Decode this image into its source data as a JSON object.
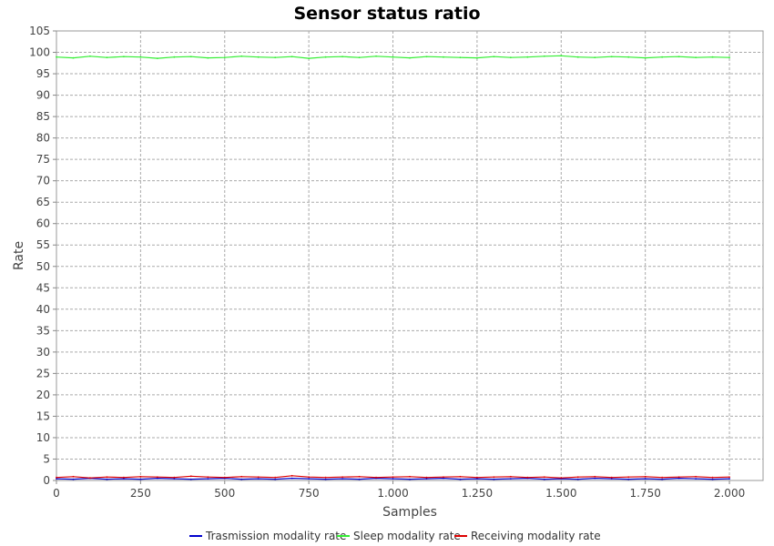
{
  "chart_data": {
    "type": "line",
    "title": "Sensor status ratio",
    "xlabel": "Samples",
    "ylabel": "Rate",
    "xlim": [
      0,
      2100
    ],
    "ylim": [
      0,
      105
    ],
    "x_ticks": [
      0,
      250,
      500,
      750,
      1000,
      1250,
      1500,
      1750,
      2000
    ],
    "x_tick_labels": [
      "0",
      "250",
      "500",
      "750",
      "1.000",
      "1.250",
      "1.500",
      "1.750",
      "2.000"
    ],
    "y_ticks": [
      0,
      5,
      10,
      15,
      20,
      25,
      30,
      35,
      40,
      45,
      50,
      55,
      60,
      65,
      70,
      75,
      80,
      85,
      90,
      95,
      100,
      105
    ],
    "grid": true,
    "legend_position": "bottom-center",
    "series": [
      {
        "name": "Trasmission modality rate",
        "color": "#0000cc",
        "x": [
          0,
          50,
          100,
          150,
          200,
          250,
          300,
          350,
          400,
          450,
          500,
          550,
          600,
          650,
          700,
          750,
          800,
          850,
          900,
          950,
          1000,
          1050,
          1100,
          1150,
          1200,
          1250,
          1300,
          1350,
          1400,
          1450,
          1500,
          1550,
          1600,
          1650,
          1700,
          1750,
          1800,
          1850,
          1900,
          1950,
          2000
        ],
        "values": [
          0.4,
          0.3,
          0.5,
          0.3,
          0.4,
          0.3,
          0.5,
          0.4,
          0.3,
          0.4,
          0.5,
          0.3,
          0.4,
          0.3,
          0.5,
          0.4,
          0.3,
          0.4,
          0.3,
          0.5,
          0.4,
          0.3,
          0.4,
          0.5,
          0.3,
          0.4,
          0.3,
          0.4,
          0.5,
          0.3,
          0.4,
          0.3,
          0.5,
          0.4,
          0.3,
          0.4,
          0.3,
          0.5,
          0.4,
          0.3,
          0.4
        ]
      },
      {
        "name": "Sleep modality rate",
        "color": "#33ee33",
        "x": [
          0,
          50,
          100,
          150,
          200,
          250,
          300,
          350,
          400,
          450,
          500,
          550,
          600,
          650,
          700,
          750,
          800,
          850,
          900,
          950,
          1000,
          1050,
          1100,
          1150,
          1200,
          1250,
          1300,
          1350,
          1400,
          1450,
          1500,
          1550,
          1600,
          1650,
          1700,
          1750,
          1800,
          1850,
          1900,
          1950,
          2000
        ],
        "values": [
          98.9,
          98.7,
          99.1,
          98.8,
          99.0,
          98.9,
          98.6,
          98.9,
          99.0,
          98.7,
          98.8,
          99.1,
          98.9,
          98.8,
          99.0,
          98.6,
          98.9,
          99.0,
          98.8,
          99.1,
          98.9,
          98.7,
          99.0,
          98.9,
          98.8,
          98.7,
          99.0,
          98.8,
          98.9,
          99.1,
          99.2,
          98.9,
          98.8,
          99.0,
          98.9,
          98.7,
          98.9,
          99.0,
          98.8,
          98.9,
          98.8
        ]
      },
      {
        "name": "Receiving modality rate",
        "color": "#dd0000",
        "x": [
          0,
          50,
          100,
          150,
          200,
          250,
          300,
          350,
          400,
          450,
          500,
          550,
          600,
          650,
          700,
          750,
          800,
          850,
          900,
          950,
          1000,
          1050,
          1100,
          1150,
          1200,
          1250,
          1300,
          1350,
          1400,
          1450,
          1500,
          1550,
          1600,
          1650,
          1700,
          1750,
          1800,
          1850,
          1900,
          1950,
          2000
        ],
        "values": [
          0.7,
          0.9,
          0.6,
          0.8,
          0.7,
          0.9,
          0.8,
          0.7,
          1.0,
          0.8,
          0.7,
          0.9,
          0.8,
          0.7,
          1.1,
          0.8,
          0.7,
          0.8,
          0.9,
          0.7,
          0.8,
          0.9,
          0.7,
          0.8,
          0.9,
          0.7,
          0.8,
          0.9,
          0.7,
          0.8,
          0.6,
          0.8,
          0.9,
          0.7,
          0.8,
          0.9,
          0.7,
          0.8,
          0.9,
          0.7,
          0.8
        ]
      }
    ]
  }
}
